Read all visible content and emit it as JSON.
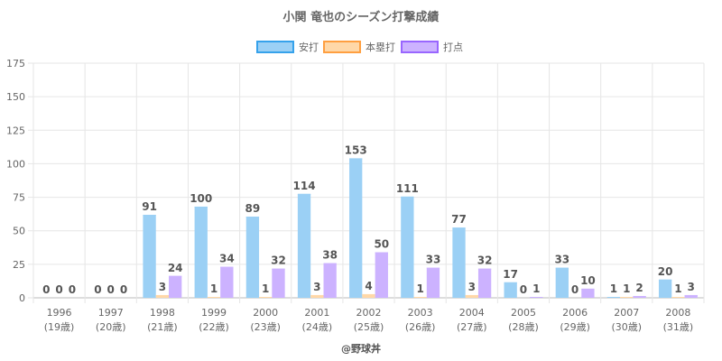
{
  "chart_data": {
    "type": "bar",
    "title": "小関 竜也のシーズン打撃成績",
    "categories": [
      "1996",
      "1997",
      "1998",
      "1999",
      "2000",
      "2001",
      "2002",
      "2003",
      "2004",
      "2005",
      "2006",
      "2007",
      "2008"
    ],
    "ages": [
      "(19歳)",
      "(20歳)",
      "(21歳)",
      "(22歳)",
      "(23歳)",
      "(24歳)",
      "(25歳)",
      "(26歳)",
      "(27歳)",
      "(28歳)",
      "(29歳)",
      "(30歳)",
      "(31歳)"
    ],
    "series": [
      {
        "name": "安打",
        "values": [
          0,
          0,
          91,
          100,
          89,
          114,
          153,
          111,
          77,
          17,
          33,
          1,
          20
        ],
        "fill": "#9bd0f5",
        "stroke": "#36a2eb"
      },
      {
        "name": "本塁打",
        "values": [
          0,
          0,
          3,
          1,
          1,
          3,
          4,
          1,
          3,
          0,
          0,
          1,
          1
        ],
        "fill": "#ffd8a8",
        "stroke": "#ff9f40"
      },
      {
        "name": "打点",
        "values": [
          0,
          0,
          24,
          34,
          32,
          38,
          50,
          33,
          32,
          1,
          10,
          2,
          3
        ],
        "fill": "#ccb2ff",
        "stroke": "#9966ff"
      }
    ],
    "y_display_scale": 0.68,
    "ylim": [
      0,
      175
    ],
    "yticks": [
      0,
      25,
      50,
      75,
      100,
      125,
      150,
      175
    ],
    "grid": true,
    "legend_position": "top-center"
  },
  "credit": "@野球丼"
}
